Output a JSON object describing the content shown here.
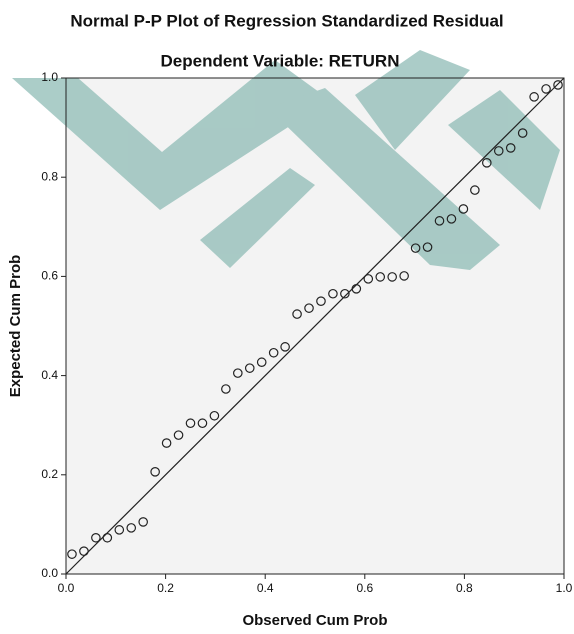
{
  "chart_data": {
    "type": "scatter",
    "title": "Normal P-P Plot of Regression Standardized Residual",
    "subtitle": "Dependent Variable: RETURN",
    "x_label": "Observed Cum Prob",
    "y_label": "Expected Cum Prob",
    "x": [
      0.012,
      0.036,
      0.06,
      0.083,
      0.107,
      0.131,
      0.155,
      0.179,
      0.202,
      0.226,
      0.25,
      0.274,
      0.298,
      0.321,
      0.345,
      0.369,
      0.393,
      0.417,
      0.44,
      0.464,
      0.488,
      0.512,
      0.536,
      0.56,
      0.583,
      0.607,
      0.631,
      0.655,
      0.679,
      0.702,
      0.726,
      0.75,
      0.774,
      0.798,
      0.821,
      0.845,
      0.869,
      0.893,
      0.917,
      0.94,
      0.964,
      0.988
    ],
    "values": [
      0.04,
      0.046,
      0.073,
      0.073,
      0.089,
      0.093,
      0.105,
      0.206,
      0.264,
      0.28,
      0.304,
      0.304,
      0.319,
      0.373,
      0.405,
      0.415,
      0.427,
      0.446,
      0.458,
      0.524,
      0.536,
      0.55,
      0.565,
      0.565,
      0.575,
      0.595,
      0.599,
      0.599,
      0.601,
      0.657,
      0.659,
      0.712,
      0.716,
      0.736,
      0.774,
      0.829,
      0.853,
      0.859,
      0.889,
      0.962,
      0.978,
      0.986
    ],
    "xlim": [
      0,
      1
    ],
    "ylim": [
      0,
      1
    ],
    "xticks": [
      {
        "value": 0,
        "label": "0.0"
      },
      {
        "value": 0.2,
        "label": "0.2"
      },
      {
        "value": 0.4,
        "label": "0.4"
      },
      {
        "value": 0.6,
        "label": "0.6"
      },
      {
        "value": 0.8,
        "label": "0.8"
      },
      {
        "value": 1,
        "label": "1.0"
      }
    ],
    "yticks": [
      {
        "value": 0,
        "label": "0.0"
      },
      {
        "value": 0.2,
        "label": "0.2"
      },
      {
        "value": 0.4,
        "label": "0.4"
      },
      {
        "value": 0.6,
        "label": "0.6"
      },
      {
        "value": 0.8,
        "label": "0.8"
      },
      {
        "value": 1,
        "label": "1.0"
      }
    ],
    "marker_color": "#222222"
  }
}
